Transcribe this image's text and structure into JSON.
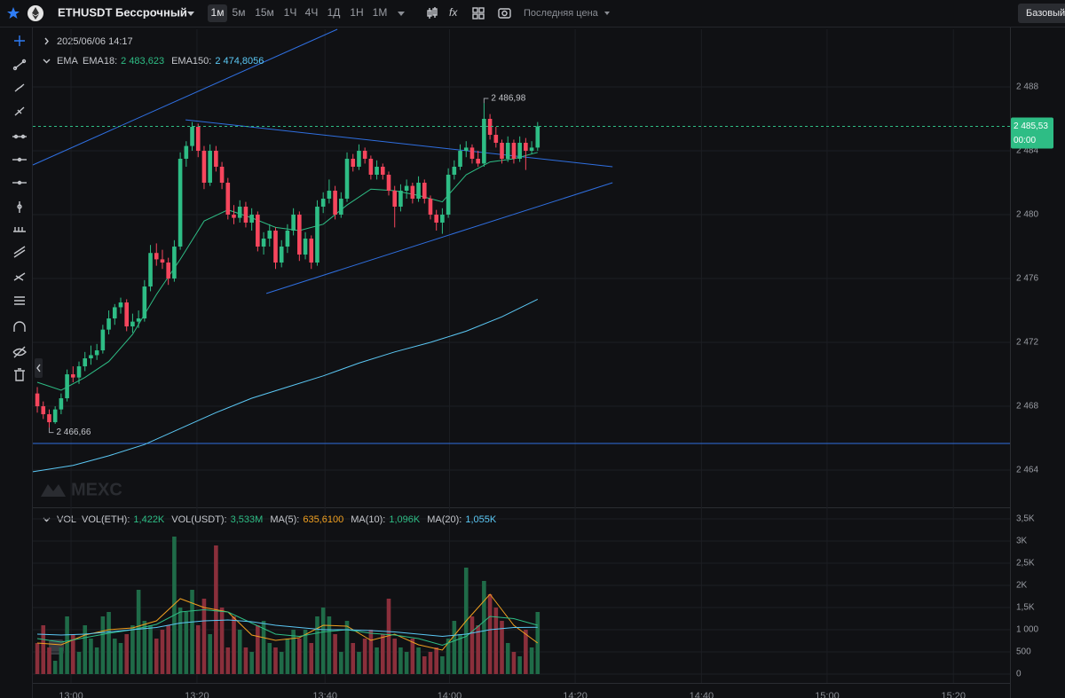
{
  "toolbar": {
    "symbol": "ETHUSDT Бессрочный",
    "timeframes": [
      "1м",
      "5м",
      "15м",
      "1Ч",
      "4Ч",
      "1Д",
      "1Н",
      "1М"
    ],
    "price_type": "Последняя цена",
    "layout_button": "Базовый"
  },
  "chart_data": {
    "type": "candlestick",
    "datetime": "2025/06/06 14:17",
    "watermark": "MEXC",
    "indicator_label": "EMA",
    "up_color": "#2ebd85",
    "down_color": "#f6465d",
    "candles": [
      [
        2468.8,
        2469.2,
        2467.6,
        2468.0
      ],
      [
        2468.0,
        2468.3,
        2467.2,
        2467.5
      ],
      [
        2467.5,
        2467.8,
        2466.66,
        2467.0
      ],
      [
        2467.0,
        2468.0,
        2466.9,
        2467.8
      ],
      [
        2467.8,
        2468.8,
        2467.5,
        2468.5
      ],
      [
        2468.5,
        2470.3,
        2468.3,
        2470.0
      ],
      [
        2470.0,
        2470.5,
        2469.5,
        2469.8
      ],
      [
        2469.8,
        2470.8,
        2469.4,
        2470.5
      ],
      [
        2470.5,
        2471.4,
        2470.2,
        2471.0
      ],
      [
        2471.0,
        2471.8,
        2470.6,
        2471.2
      ],
      [
        2471.2,
        2471.9,
        2470.9,
        2471.5
      ],
      [
        2471.5,
        2473.1,
        2471.3,
        2472.8
      ],
      [
        2472.8,
        2474.0,
        2472.5,
        2473.5
      ],
      [
        2473.5,
        2474.4,
        2473.1,
        2474.2
      ],
      [
        2474.2,
        2474.8,
        2473.8,
        2474.5
      ],
      [
        2474.5,
        2474.7,
        2472.7,
        2473.0
      ],
      [
        2473.0,
        2473.8,
        2472.6,
        2473.3
      ],
      [
        2473.3,
        2474.0,
        2472.9,
        2473.5
      ],
      [
        2473.5,
        2475.9,
        2473.3,
        2475.5
      ],
      [
        2475.5,
        2478.1,
        2475.2,
        2477.6
      ],
      [
        2477.6,
        2478.2,
        2476.8,
        2477.2
      ],
      [
        2477.2,
        2477.8,
        2476.6,
        2477.0
      ],
      [
        2477.0,
        2477.3,
        2475.6,
        2476.0
      ],
      [
        2476.0,
        2478.4,
        2475.8,
        2478.0
      ],
      [
        2478.0,
        2483.9,
        2477.8,
        2483.5
      ],
      [
        2483.5,
        2484.6,
        2483.0,
        2484.3
      ],
      [
        2484.3,
        2485.8,
        2484.0,
        2485.5
      ],
      [
        2485.5,
        2485.7,
        2483.6,
        2484.0
      ],
      [
        2484.0,
        2484.3,
        2481.6,
        2482.0
      ],
      [
        2482.0,
        2484.4,
        2481.8,
        2484.0
      ],
      [
        2484.0,
        2484.3,
        2482.7,
        2483.0
      ],
      [
        2483.0,
        2483.3,
        2481.6,
        2482.0
      ],
      [
        2482.0,
        2482.3,
        2479.7,
        2480.0
      ],
      [
        2480.0,
        2480.6,
        2479.4,
        2479.8
      ],
      [
        2479.8,
        2480.9,
        2479.5,
        2480.5
      ],
      [
        2480.5,
        2480.8,
        2479.2,
        2479.5
      ],
      [
        2479.5,
        2480.4,
        2479.0,
        2480.0
      ],
      [
        2480.0,
        2480.2,
        2477.7,
        2478.0
      ],
      [
        2478.0,
        2478.9,
        2477.5,
        2478.5
      ],
      [
        2478.5,
        2479.4,
        2478.0,
        2479.0
      ],
      [
        2479.0,
        2479.2,
        2476.6,
        2477.0
      ],
      [
        2477.0,
        2478.4,
        2476.7,
        2478.0
      ],
      [
        2478.0,
        2479.4,
        2477.6,
        2479.0
      ],
      [
        2479.0,
        2480.4,
        2478.7,
        2480.0
      ],
      [
        2480.0,
        2480.2,
        2477.1,
        2477.5
      ],
      [
        2477.5,
        2478.9,
        2477.2,
        2478.5
      ],
      [
        2478.5,
        2478.7,
        2476.6,
        2477.0
      ],
      [
        2477.0,
        2480.9,
        2476.8,
        2480.5
      ],
      [
        2480.5,
        2481.4,
        2480.1,
        2481.0
      ],
      [
        2481.0,
        2482.2,
        2480.7,
        2481.5
      ],
      [
        2481.5,
        2481.8,
        2479.7,
        2480.0
      ],
      [
        2480.0,
        2481.4,
        2479.8,
        2481.0
      ],
      [
        2481.0,
        2483.9,
        2480.8,
        2483.5
      ],
      [
        2483.5,
        2483.8,
        2482.7,
        2483.0
      ],
      [
        2483.0,
        2484.4,
        2482.8,
        2484.0
      ],
      [
        2484.0,
        2484.2,
        2483.2,
        2483.5
      ],
      [
        2483.5,
        2483.7,
        2482.2,
        2482.5
      ],
      [
        2482.5,
        2483.4,
        2482.2,
        2483.0
      ],
      [
        2483.0,
        2483.2,
        2482.2,
        2482.5
      ],
      [
        2482.5,
        2482.7,
        2481.2,
        2481.5
      ],
      [
        2481.5,
        2481.8,
        2479.2,
        2480.5
      ],
      [
        2480.5,
        2481.9,
        2480.2,
        2481.5
      ],
      [
        2481.5,
        2482.2,
        2481.0,
        2481.8
      ],
      [
        2481.8,
        2482.0,
        2480.7,
        2481.0
      ],
      [
        2481.0,
        2482.4,
        2480.8,
        2482.0
      ],
      [
        2482.0,
        2482.2,
        2480.7,
        2481.0
      ],
      [
        2481.0,
        2481.2,
        2479.7,
        2480.0
      ],
      [
        2480.0,
        2480.3,
        2479.0,
        2479.5
      ],
      [
        2479.5,
        2480.4,
        2478.8,
        2480.0
      ],
      [
        2480.0,
        2482.9,
        2479.8,
        2482.5
      ],
      [
        2482.5,
        2483.4,
        2482.2,
        2483.0
      ],
      [
        2483.0,
        2484.4,
        2482.8,
        2484.0
      ],
      [
        2484.0,
        2484.6,
        2483.6,
        2484.2
      ],
      [
        2484.2,
        2484.4,
        2483.2,
        2483.5
      ],
      [
        2483.5,
        2484.0,
        2483.0,
        2483.2
      ],
      [
        2483.2,
        2486.98,
        2483.0,
        2486.0
      ],
      [
        2486.0,
        2486.3,
        2484.7,
        2485.0
      ],
      [
        2485.0,
        2485.5,
        2484.2,
        2484.5
      ],
      [
        2484.5,
        2484.7,
        2483.2,
        2483.5
      ],
      [
        2483.5,
        2484.9,
        2483.3,
        2484.5
      ],
      [
        2484.5,
        2484.7,
        2483.2,
        2483.5
      ],
      [
        2483.5,
        2484.9,
        2483.3,
        2484.5
      ],
      [
        2484.5,
        2484.8,
        2482.8,
        2484.0
      ],
      [
        2484.0,
        2484.6,
        2483.8,
        2484.2
      ],
      [
        2484.2,
        2485.8,
        2484.0,
        2485.53
      ]
    ],
    "xlim": [
      -0.75,
      163.3
    ],
    "xticks": [
      {
        "value": 5.66,
        "label": "13:00"
      },
      {
        "value": 26.8,
        "label": "13:20"
      },
      {
        "value": 48.3,
        "label": "13:40"
      },
      {
        "value": 69.2,
        "label": "14:00"
      },
      {
        "value": 90.3,
        "label": "14:20"
      },
      {
        "value": 111.5,
        "label": "14:40"
      },
      {
        "value": 132.6,
        "label": "15:00"
      },
      {
        "value": 153.8,
        "label": "15:20"
      }
    ],
    "ylim": [
      2461.67,
      2491.61
    ],
    "yticks": [
      {
        "value": 2488,
        "label": "2 488"
      },
      {
        "value": 2484,
        "label": "2 484"
      },
      {
        "value": 2480,
        "label": "2 480"
      },
      {
        "value": 2476,
        "label": "2 476"
      },
      {
        "value": 2472,
        "label": "2 472"
      },
      {
        "value": 2468,
        "label": "2 468"
      },
      {
        "value": 2464,
        "label": "2 464"
      }
    ],
    "high_label": {
      "x": 75,
      "value": 2486.98,
      "label": "2 486,98"
    },
    "low_label": {
      "x": 2,
      "value": 2466.66,
      "label": "2 466,66"
    },
    "last_price": {
      "value": 2485.53,
      "label": "2 485,53",
      "countdown": "00:00",
      "color": "#2ebd85"
    },
    "series": [
      {
        "name": "EMA18:",
        "value_label": "2 483,623",
        "color": "#2ebd85",
        "x": [
          0,
          4,
          8,
          12,
          16,
          20,
          24,
          28,
          32,
          36,
          40,
          44,
          48,
          52,
          56,
          60,
          64,
          68,
          72,
          76,
          80,
          84
        ],
        "values": [
          2469.5,
          2469.0,
          2469.8,
          2470.8,
          2472.5,
          2475.0,
          2477.2,
          2479.6,
          2480.3,
          2479.8,
          2479.2,
          2479.0,
          2479.4,
          2480.6,
          2481.6,
          2481.5,
          2481.2,
          2480.8,
          2482.5,
          2483.3,
          2483.5,
          2483.9
        ]
      },
      {
        "name": "EMA150:",
        "value_label": "2 474,8056",
        "color": "#5bc8f5",
        "x": [
          -0.75,
          6,
          12,
          18,
          24,
          30,
          36,
          42,
          48,
          54,
          60,
          66,
          72,
          78,
          84
        ],
        "values": [
          2463.9,
          2464.3,
          2464.9,
          2465.6,
          2466.6,
          2467.6,
          2468.5,
          2469.2,
          2469.9,
          2470.7,
          2471.4,
          2472.0,
          2472.7,
          2473.6,
          2474.7
        ]
      }
    ],
    "drawings": {
      "color": "#2f6fe0",
      "lines": [
        {
          "x": [
            -0.75,
            50.37
          ],
          "values": [
            2483.11,
            2491.61
          ]
        },
        {
          "x": [
            24.89,
            96.57
          ],
          "values": [
            2485.94,
            2483.0
          ]
        },
        {
          "x": [
            38.45,
            96.57
          ],
          "values": [
            2475.06,
            2482.0
          ]
        }
      ],
      "horizontal": 2465.67
    },
    "volume": {
      "label": "VOL",
      "legend_items": [
        {
          "name": "VOL(ETH):",
          "value_label": "1,422K"
        },
        {
          "name": "VOL(USDT):",
          "value_label": "3,533M"
        }
      ],
      "up_color": "#1f6b48",
      "down_color": "#8a2f3b",
      "values": [
        700,
        1100,
        600,
        300,
        600,
        1300,
        900,
        500,
        1100,
        800,
        600,
        1300,
        1400,
        800,
        700,
        900,
        1100,
        1900,
        1200,
        1100,
        800,
        1000,
        1100,
        3100,
        1500,
        1400,
        1900,
        1100,
        1700,
        900,
        2900,
        1500,
        600,
        1300,
        1000,
        600,
        500,
        1100,
        1200,
        700,
        600,
        500,
        800,
        1000,
        800,
        1000,
        700,
        1300,
        1500,
        1300,
        900,
        500,
        1200,
        700,
        500,
        800,
        1000,
        600,
        900,
        1700,
        800,
        600,
        500,
        800,
        600,
        400,
        500,
        600,
        400,
        800,
        1200,
        900,
        2400,
        1300,
        1100,
        2100,
        1800,
        1500,
        1200,
        700,
        500,
        400,
        1000,
        600,
        1400
      ],
      "ylim": [
        0,
        3640
      ],
      "yticks": [
        {
          "value": 3500,
          "label": "3,5K"
        },
        {
          "value": 3000,
          "label": "3K"
        },
        {
          "value": 2500,
          "label": "2,5K"
        },
        {
          "value": 2000,
          "label": "2K"
        },
        {
          "value": 1500,
          "label": "1,5K"
        },
        {
          "value": 1000,
          "label": "1 000"
        },
        500,
        0
      ],
      "series": [
        {
          "name": "MA(5):",
          "value_label": "635,6100",
          "color": "#f0a020",
          "x": [
            0,
            4,
            8,
            12,
            16,
            20,
            24,
            28,
            32,
            36,
            40,
            44,
            48,
            52,
            56,
            60,
            64,
            68,
            72,
            76,
            80,
            84
          ],
          "values": [
            700,
            660,
            880,
            1000,
            1040,
            1200,
            1700,
            1500,
            1400,
            880,
            760,
            820,
            1100,
            1080,
            760,
            900,
            660,
            540,
            1200,
            1800,
            1100,
            700
          ]
        },
        {
          "name": "MA(10):",
          "value_label": "1,096K",
          "color": "#2ebd85",
          "x": [
            0,
            4,
            8,
            12,
            16,
            20,
            24,
            28,
            32,
            36,
            40,
            44,
            48,
            52,
            56,
            60,
            64,
            68,
            72,
            76,
            80,
            84
          ],
          "values": [
            800,
            720,
            820,
            920,
            1000,
            1120,
            1400,
            1450,
            1400,
            1150,
            900,
            850,
            950,
            1000,
            920,
            880,
            800,
            650,
            850,
            1300,
            1250,
            1100
          ]
        },
        {
          "name": "MA(20):",
          "value_label": "1,055K",
          "color": "#5bc8f5",
          "x": [
            0,
            4,
            8,
            12,
            16,
            20,
            24,
            28,
            32,
            36,
            40,
            44,
            48,
            52,
            56,
            60,
            64,
            68,
            72,
            76,
            80,
            84
          ],
          "values": [
            900,
            880,
            900,
            950,
            1000,
            1050,
            1150,
            1200,
            1220,
            1180,
            1100,
            1050,
            1000,
            1000,
            980,
            950,
            900,
            850,
            900,
            1000,
            1050,
            1055
          ]
        }
      ]
    }
  }
}
